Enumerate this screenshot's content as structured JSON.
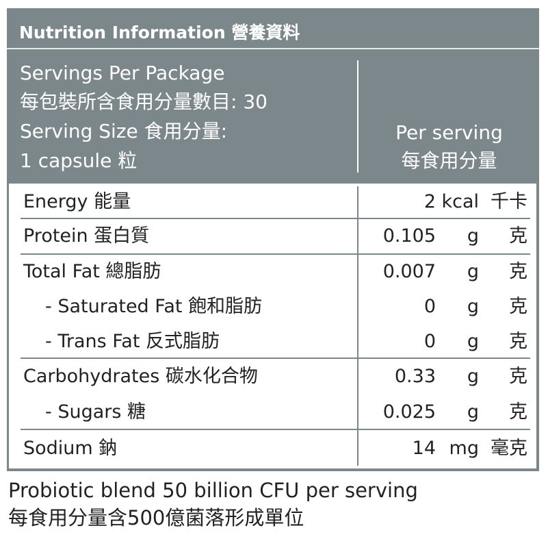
{
  "header": {
    "title": "Nutrition Information 營養資料"
  },
  "serving": {
    "lines": [
      "Servings Per Package",
      "每包裝所含食用分量數目: 30",
      "Serving Size 食用分量:",
      "1 capsule 粒"
    ],
    "per_serving": [
      "Per serving",
      "每食用分量"
    ]
  },
  "table": {
    "rows": [
      {
        "label": "Energy 能量",
        "amount": "2",
        "unit": "kcal",
        "unit_zh": "千卡"
      },
      {
        "label": "Protein 蛋白質",
        "amount": "0.105",
        "unit": "g",
        "unit_zh": "克"
      },
      {
        "label": "Total Fat 總脂肪",
        "amount": "0.007",
        "unit": "g",
        "unit_zh": "克"
      },
      {
        "label": "- Saturated Fat 飽和脂肪",
        "amount": "0",
        "unit": "g",
        "unit_zh": "克"
      },
      {
        "label": "- Trans Fat 反式脂肪",
        "amount": "0",
        "unit": "g",
        "unit_zh": "克"
      },
      {
        "label": "Carbohydrates 碳水化合物",
        "amount": "0.33",
        "unit": "g",
        "unit_zh": "克"
      },
      {
        "label": "- Sugars 糖",
        "amount": "0.025",
        "unit": "g",
        "unit_zh": "克"
      },
      {
        "label": "Sodium 鈉",
        "amount": "14",
        "unit": "mg",
        "unit_zh": "毫克"
      }
    ]
  },
  "footer": {
    "lines": [
      "Probiotic blend 50 billion CFU per serving",
      "每食用分量含500億菌落形成單位"
    ]
  }
}
